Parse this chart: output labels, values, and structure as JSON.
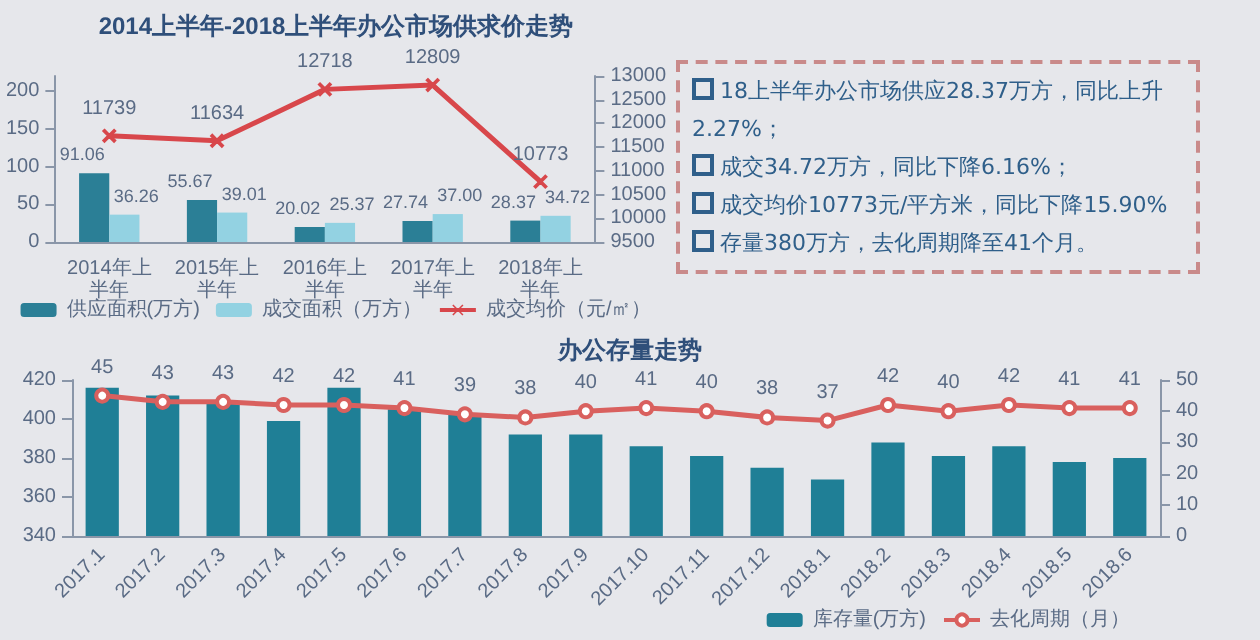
{
  "chart_data": [
    {
      "type": "bar",
      "title": "2014上半年-2018上半年办公市场供求价走势",
      "categories": [
        "2014年上半年",
        "2015年上半年",
        "2016年上半年",
        "2017年上半年",
        "2018年上半年"
      ],
      "series": [
        {
          "name": "供应面积(万方)",
          "color": "#2b7f96",
          "values": [
            91.06,
            55.67,
            20.02,
            27.74,
            28.37
          ],
          "value_labels": [
            "91.06",
            "55.67",
            "20.02",
            "27.74",
            "28.37"
          ]
        },
        {
          "name": "成交面积（万方）",
          "color": "#93d2e2",
          "values": [
            36.26,
            39.01,
            25.37,
            37.0,
            34.72
          ],
          "value_labels": [
            "36.26",
            "39.01",
            "25.37",
            "37.00",
            "34.72"
          ]
        },
        {
          "name": "成交均价（元/㎡）",
          "type": "line",
          "axis": "y2",
          "marker": "cross",
          "color": "#d8474b",
          "values": [
            11739,
            11634,
            12718,
            12809,
            10773
          ],
          "value_labels": [
            "11739",
            "11634",
            "12718",
            "12809",
            "10773"
          ]
        }
      ],
      "ylim": [
        0,
        220
      ],
      "yticks": [
        0,
        50,
        100,
        150,
        200
      ],
      "y2lim": [
        9500,
        13000
      ],
      "y2ticks": [
        9500,
        10000,
        10500,
        11000,
        11500,
        12000,
        12500,
        13000
      ],
      "legend": "bottom"
    },
    {
      "type": "other",
      "annotations": [
        "18上半年办公市场供应28.37万方，同比上升2.27%；",
        "成交34.72万方，同比下降6.16%；",
        "成交均价10773元/平方米，同比下降15.90%",
        "存量380万方，去化周期降至41个月。"
      ]
    },
    {
      "type": "bar",
      "title": "办公存量走势",
      "categories": [
        "2017.1",
        "2017.2",
        "2017.3",
        "2017.4",
        "2017.5",
        "2017.6",
        "2017.7",
        "2017.8",
        "2017.9",
        "2017.10",
        "2017.11",
        "2017.12",
        "2018.1",
        "2018.2",
        "2018.3",
        "2018.4",
        "2018.5",
        "2018.6"
      ],
      "series": [
        {
          "name": "库存量(万方)",
          "color": "#1f7f96",
          "values": [
            416,
            412,
            408,
            399,
            416,
            405,
            402,
            392,
            392,
            386,
            381,
            375,
            369,
            388,
            381,
            386,
            378,
            380
          ]
        },
        {
          "name": "去化周期（月）",
          "type": "line",
          "axis": "y2",
          "marker": "circle",
          "color": "#d9605e",
          "values": [
            45,
            43,
            43,
            42,
            42,
            41,
            39,
            38,
            40,
            41,
            40,
            38,
            37,
            42,
            40,
            42,
            41,
            41
          ],
          "value_labels": [
            "45",
            "43",
            "43",
            "42",
            "42",
            "41",
            "39",
            "38",
            "40",
            "41",
            "40",
            "38",
            "37",
            "42",
            "40",
            "42",
            "41",
            "41"
          ]
        }
      ],
      "ylim": [
        340,
        420
      ],
      "yticks": [
        340,
        360,
        380,
        400,
        420
      ],
      "y2lim": [
        0,
        50
      ],
      "y2ticks": [
        0,
        10,
        20,
        30,
        40,
        50
      ],
      "legend": "bottom right"
    }
  ]
}
